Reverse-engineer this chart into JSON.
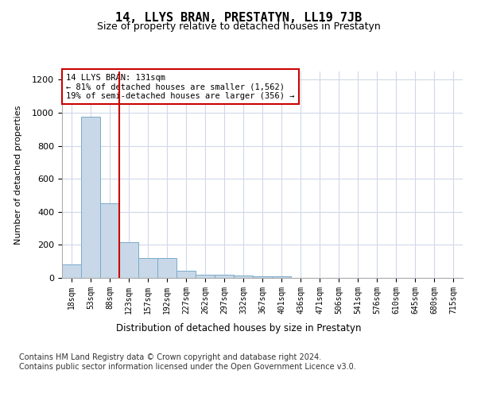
{
  "title": "14, LLYS BRAN, PRESTATYN, LL19 7JB",
  "subtitle": "Size of property relative to detached houses in Prestatyn",
  "xlabel": "Distribution of detached houses by size in Prestatyn",
  "ylabel": "Number of detached properties",
  "categories": [
    "18sqm",
    "53sqm",
    "88sqm",
    "123sqm",
    "157sqm",
    "192sqm",
    "227sqm",
    "262sqm",
    "297sqm",
    "332sqm",
    "367sqm",
    "401sqm",
    "436sqm",
    "471sqm",
    "506sqm",
    "541sqm",
    "576sqm",
    "610sqm",
    "645sqm",
    "680sqm",
    "715sqm"
  ],
  "values": [
    80,
    975,
    450,
    215,
    120,
    120,
    45,
    20,
    18,
    14,
    10,
    8,
    0,
    0,
    0,
    0,
    0,
    0,
    0,
    0,
    0
  ],
  "bar_color": "#c8d8e8",
  "bar_edge_color": "#7aaaca",
  "vline_x_index": 3,
  "vline_color": "#cc0000",
  "annotation_text": "14 LLYS BRAN: 131sqm\n← 81% of detached houses are smaller (1,562)\n19% of semi-detached houses are larger (356) →",
  "annotation_box_color": "#ffffff",
  "annotation_box_edge": "#cc0000",
  "ylim": [
    0,
    1250
  ],
  "yticks": [
    0,
    200,
    400,
    600,
    800,
    1000,
    1200
  ],
  "background_color": "#ffffff",
  "grid_color": "#d0d8e8",
  "footer_text": "Contains HM Land Registry data © Crown copyright and database right 2024.\nContains public sector information licensed under the Open Government Licence v3.0.",
  "title_fontsize": 11,
  "subtitle_fontsize": 9,
  "ylabel_fontsize": 8,
  "xtick_fontsize": 7,
  "ytick_fontsize": 8,
  "annotation_fontsize": 7.5,
  "xlabel_fontsize": 8.5,
  "footer_fontsize": 7
}
